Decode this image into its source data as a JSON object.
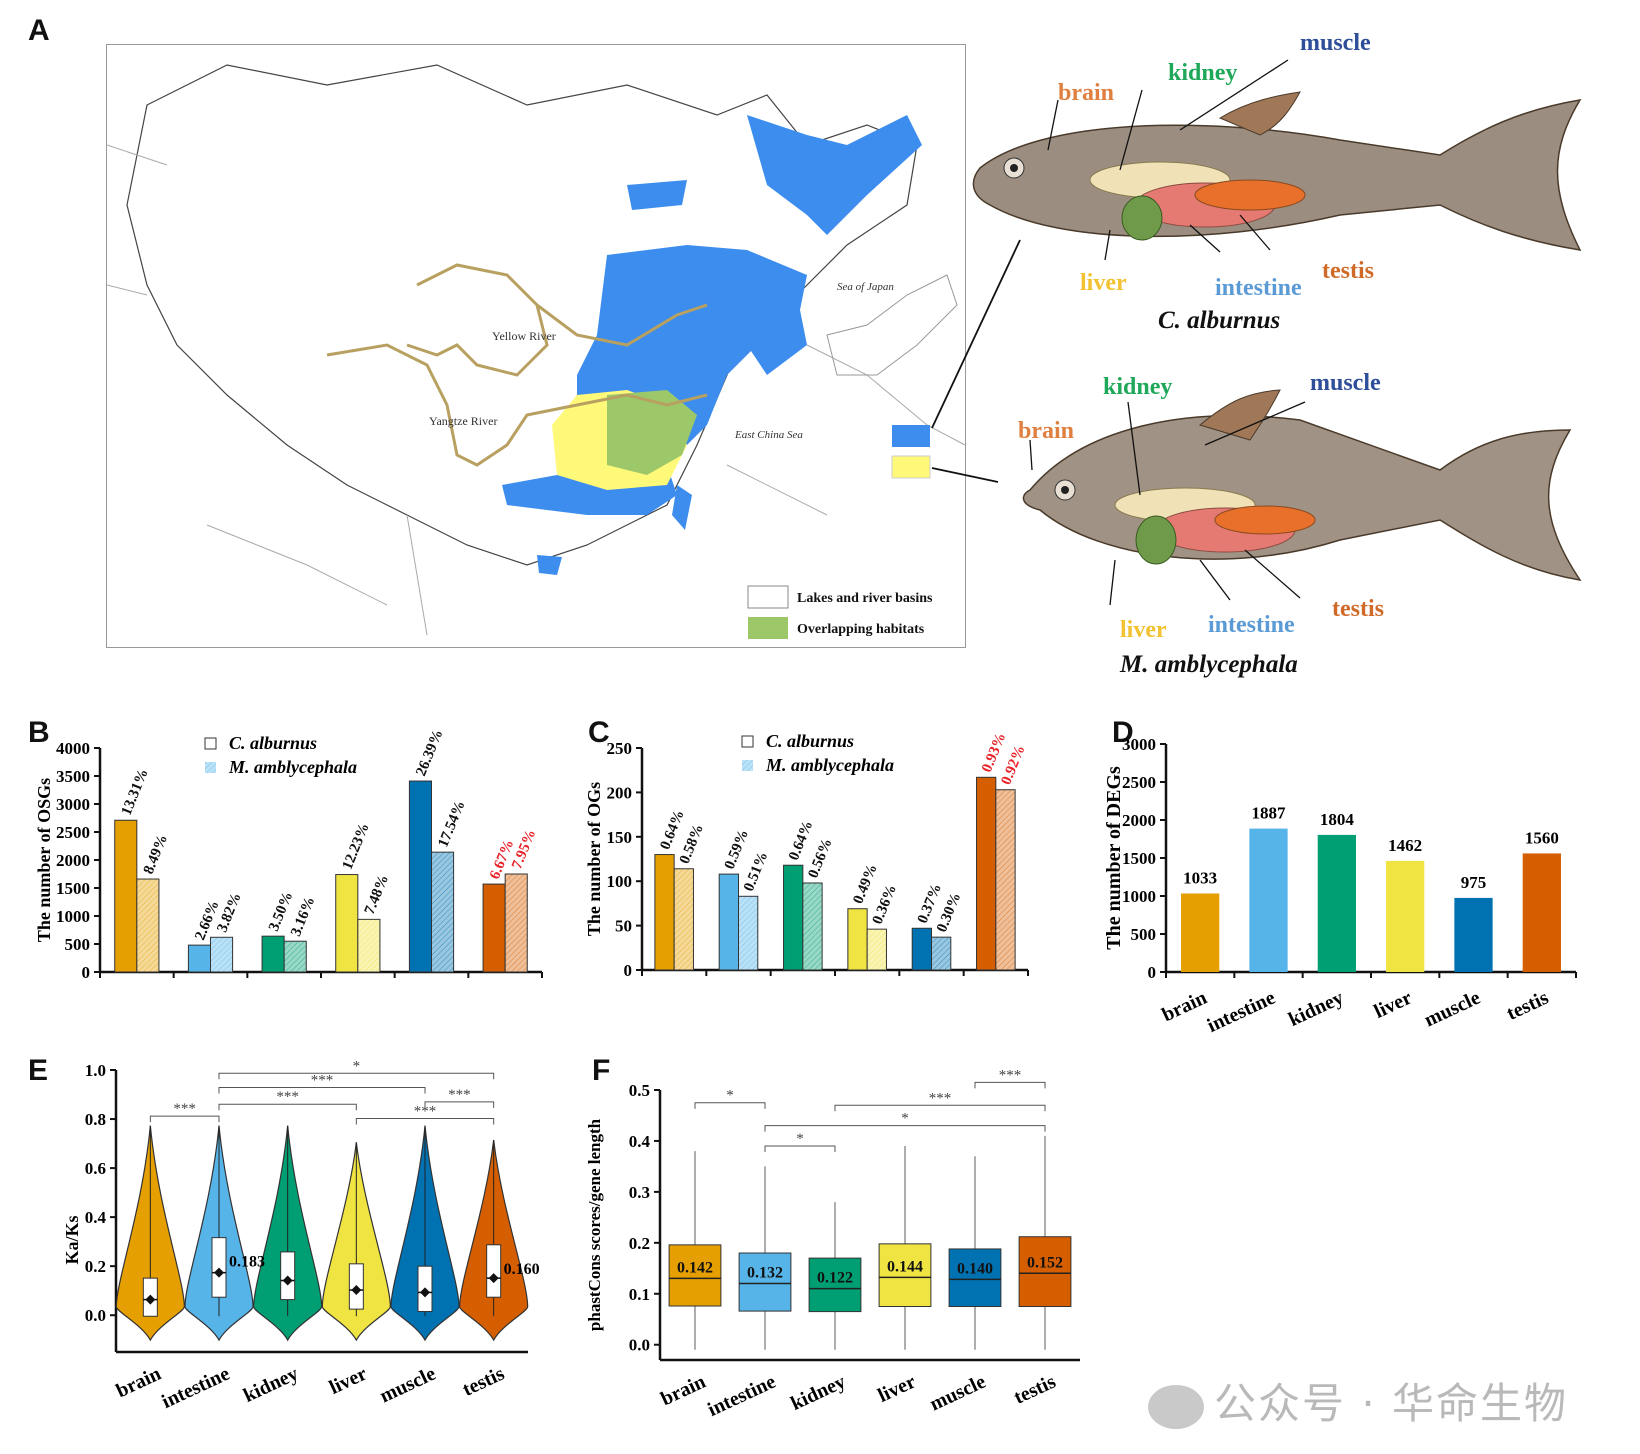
{
  "panels": {
    "A": "A",
    "B": "B",
    "C": "C",
    "D": "D",
    "E": "E",
    "F": "F"
  },
  "colors": {
    "brain": "#E69F00",
    "intestine": "#56B4E9",
    "kidney": "#009E73",
    "liver": "#F0E442",
    "muscle": "#0072B2",
    "testis": "#D55E00",
    "c_alburnus_range": "#3C8DEE",
    "m_amblycephala_range": "#FFF97A",
    "overlap": "#9CC86A",
    "river": "#B8A060",
    "highlight": "#E8232A"
  },
  "map": {
    "labels": {
      "yellow_river": "Yellow River",
      "yangtze_river": "Yangtze River",
      "sea_of_japan": "Sea of Japan",
      "east_china_sea": "East China Sea"
    },
    "legend": [
      {
        "label": "Lakes and river basins",
        "swatch": "#FFFFFF"
      },
      {
        "label": "Overlapping habitats",
        "swatch": "#9CC86A"
      }
    ]
  },
  "fish": [
    {
      "species": "C. alburnus",
      "organs": {
        "brain": "brain",
        "kidney": "kidney",
        "muscle": "muscle",
        "liver": "liver",
        "intestine": "intestine",
        "testis": "testis"
      }
    },
    {
      "species": "M. amblycephala",
      "organs": {
        "brain": "brain",
        "kidney": "kidney",
        "muscle": "muscle",
        "liver": "liver",
        "intestine": "intestine",
        "testis": "testis"
      }
    }
  ],
  "organ_label_colors": {
    "brain": "#E08040",
    "kidney": "#1FA85A",
    "muscle": "#2E4E9A",
    "liver": "#F2C230",
    "intestine": "#5B9BD5",
    "testis": "#D06A28"
  },
  "chart_data": [
    {
      "id": "B",
      "type": "bar",
      "title": "",
      "xlabel": "",
      "ylabel": "The number of OSGs",
      "ylim": [
        0,
        4000
      ],
      "yticks": [
        0,
        500,
        1000,
        1500,
        2000,
        2500,
        3000,
        3500,
        4000
      ],
      "categories": [
        "brain",
        "intestine",
        "kidney",
        "liver",
        "muscle",
        "testis"
      ],
      "legend": [
        "C. alburnus",
        "M. amblycephala"
      ],
      "legend_position": "top-center",
      "series": [
        {
          "name": "C. alburnus",
          "values": [
            2710,
            480,
            640,
            1740,
            3410,
            1570
          ],
          "labels": [
            "13.31%",
            "2.66%",
            "3.50%",
            "12.23%",
            "26.39%",
            "6.67%"
          ]
        },
        {
          "name": "M. amblycephala",
          "values": [
            1660,
            620,
            550,
            940,
            2140,
            1750
          ],
          "labels": [
            "8.49%",
            "3.82%",
            "3.16%",
            "7.48%",
            "17.54%",
            "7.95%"
          ]
        }
      ],
      "highlight_category": "testis"
    },
    {
      "id": "C",
      "type": "bar",
      "title": "",
      "xlabel": "",
      "ylabel": "The number of OGs",
      "ylim": [
        0,
        250
      ],
      "yticks": [
        0,
        50,
        100,
        150,
        200,
        250
      ],
      "categories": [
        "brain",
        "intestine",
        "kidney",
        "liver",
        "muscle",
        "testis"
      ],
      "legend": [
        "C. alburnus",
        "M. amblycephala"
      ],
      "legend_position": "top-center",
      "series": [
        {
          "name": "C. alburnus",
          "values": [
            130,
            108,
            118,
            69,
            47,
            217
          ],
          "labels": [
            "0.64%",
            "0.59%",
            "0.64%",
            "0.49%",
            "0.37%",
            "0.93%"
          ]
        },
        {
          "name": "M. amblycephala",
          "values": [
            114,
            83,
            98,
            46,
            37,
            203
          ],
          "labels": [
            "0.58%",
            "0.51%",
            "0.56%",
            "0.36%",
            "0.30%",
            "0.92%"
          ]
        }
      ],
      "highlight_category": "testis"
    },
    {
      "id": "D",
      "type": "bar",
      "title": "",
      "xlabel": "",
      "ylabel": "The number of DEGs",
      "ylim": [
        0,
        3000
      ],
      "yticks": [
        0,
        500,
        1000,
        1500,
        2000,
        2500,
        3000
      ],
      "categories": [
        "brain",
        "intestine",
        "kidney",
        "liver",
        "muscle",
        "testis"
      ],
      "values": [
        1033,
        1887,
        1804,
        1462,
        975,
        1560
      ],
      "labels": [
        "1033",
        "1887",
        "1804",
        "1462",
        "975",
        "1560"
      ]
    },
    {
      "id": "E",
      "type": "violin",
      "title": "",
      "xlabel": "",
      "ylabel": "Ka/Ks",
      "ylim": [
        -0.15,
        1.0
      ],
      "yticks": [
        "0.0",
        "0.2",
        "0.4",
        "0.6",
        "0.8",
        "1.0"
      ],
      "categories": [
        "brain",
        "intestine",
        "kidney",
        "liver",
        "muscle",
        "testis"
      ],
      "medians": [
        0.07,
        0.183,
        0.15,
        0.11,
        0.1,
        0.16
      ],
      "q1": [
        0.0,
        0.08,
        0.07,
        0.03,
        0.02,
        0.08
      ],
      "q3": [
        0.16,
        0.33,
        0.27,
        0.22,
        0.21,
        0.3
      ],
      "whisker_max": [
        0.8,
        0.8,
        0.8,
        0.73,
        0.8,
        0.74
      ],
      "annotations": [
        {
          "category": "intestine",
          "text": "0.183"
        },
        {
          "category": "testis",
          "text": "0.160"
        }
      ],
      "significance": [
        {
          "from": "brain",
          "to": "intestine",
          "label": "***"
        },
        {
          "from": "intestine",
          "to": "liver",
          "label": "***"
        },
        {
          "from": "intestine",
          "to": "muscle",
          "label": "***"
        },
        {
          "from": "intestine",
          "to": "testis",
          "label": "*"
        },
        {
          "from": "muscle",
          "to": "testis",
          "label": "***"
        },
        {
          "from": "liver",
          "to": "testis",
          "label": "***"
        }
      ]
    },
    {
      "id": "F",
      "type": "box",
      "title": "",
      "xlabel": "",
      "ylabel": "phastCons scores/gene length",
      "ylim": [
        -0.03,
        0.5
      ],
      "yticks": [
        "0.0",
        "0.1",
        "0.2",
        "0.3",
        "0.4",
        "0.5"
      ],
      "categories": [
        "brain",
        "intestine",
        "kidney",
        "liver",
        "muscle",
        "testis"
      ],
      "medians": [
        0.142,
        0.132,
        0.122,
        0.144,
        0.14,
        0.152
      ],
      "median_labels": [
        "0.142",
        "0.132",
        "0.122",
        "0.144",
        "0.140",
        "0.152"
      ],
      "q1": [
        0.076,
        0.066,
        0.065,
        0.075,
        0.075,
        0.075
      ],
      "q3": [
        0.196,
        0.18,
        0.17,
        0.198,
        0.188,
        0.212
      ],
      "whisker_min": [
        -0.01,
        -0.01,
        -0.01,
        -0.01,
        -0.01,
        -0.01
      ],
      "whisker_max": [
        0.38,
        0.35,
        0.28,
        0.39,
        0.37,
        0.41
      ],
      "significance": [
        {
          "from": "brain",
          "to": "intestine",
          "label": "*"
        },
        {
          "from": "muscle",
          "to": "testis",
          "label": "***"
        },
        {
          "from": "kidney",
          "to": "testis",
          "label": "***"
        },
        {
          "from": "intestine",
          "to": "testis",
          "label": "*"
        },
        {
          "from": "intestine",
          "to": "kidney",
          "label": "*"
        }
      ]
    }
  ],
  "watermark": "公众号 · 华命生物"
}
